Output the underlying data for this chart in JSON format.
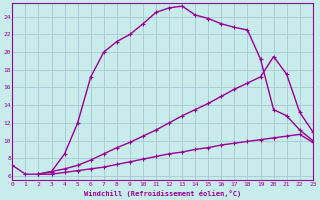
{
  "xlabel": "Windchill (Refroidissement éolien,°C)",
  "bg_color": "#c8ecec",
  "grid_color": "#aac8d4",
  "line_color": "#990099",
  "x_ticks": [
    0,
    1,
    2,
    3,
    4,
    5,
    6,
    7,
    8,
    9,
    10,
    11,
    12,
    13,
    14,
    15,
    16,
    17,
    18,
    19,
    20,
    21,
    22,
    23
  ],
  "y_ticks": [
    6,
    8,
    10,
    12,
    14,
    16,
    18,
    20,
    22,
    24
  ],
  "xlim": [
    0,
    23
  ],
  "ylim": [
    5.5,
    25.5
  ],
  "curve1_x": [
    0,
    1,
    2,
    3,
    4,
    5,
    6,
    7,
    8,
    9,
    10,
    11,
    12,
    13,
    14,
    15,
    16,
    17,
    18,
    19,
    20,
    21,
    22,
    23
  ],
  "curve1_y": [
    7.2,
    6.2,
    6.2,
    6.5,
    8.5,
    12.0,
    17.2,
    20.0,
    21.2,
    22.0,
    23.2,
    24.5,
    25.0,
    25.2,
    24.2,
    23.8,
    23.2,
    22.8,
    22.5,
    19.2,
    13.5,
    12.8,
    11.2,
    10.0
  ],
  "curve2_x": [
    2,
    3,
    4,
    5,
    6,
    7,
    8,
    9,
    10,
    11,
    12,
    13,
    14,
    15,
    16,
    17,
    18,
    19,
    20,
    21,
    22,
    23
  ],
  "curve2_y": [
    6.2,
    6.5,
    6.8,
    7.2,
    7.8,
    8.5,
    9.2,
    9.8,
    10.5,
    11.2,
    12.0,
    12.8,
    13.5,
    14.2,
    15.0,
    15.8,
    16.5,
    17.2,
    19.5,
    17.5,
    13.2,
    11.0
  ],
  "curve3_x": [
    2,
    3,
    4,
    5,
    6,
    7,
    8,
    9,
    10,
    11,
    12,
    13,
    14,
    15,
    16,
    17,
    18,
    19,
    20,
    21,
    22,
    23
  ],
  "curve3_y": [
    6.2,
    6.2,
    6.4,
    6.6,
    6.8,
    7.0,
    7.3,
    7.6,
    7.9,
    8.2,
    8.5,
    8.7,
    9.0,
    9.2,
    9.5,
    9.7,
    9.9,
    10.1,
    10.3,
    10.5,
    10.7,
    9.8
  ],
  "marker": "+",
  "marker_size": 3,
  "line_width": 1.0
}
